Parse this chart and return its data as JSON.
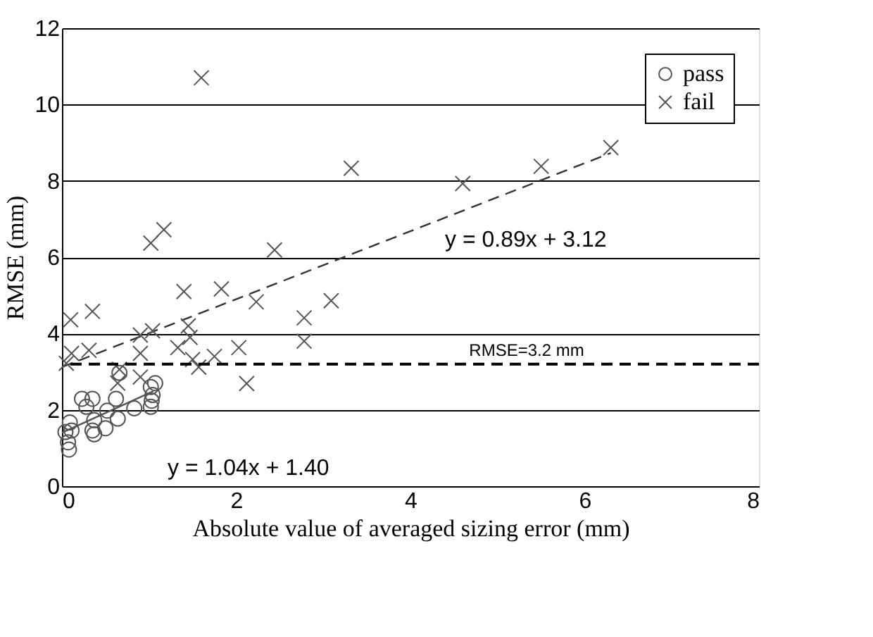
{
  "chart_data": {
    "type": "scatter",
    "xlabel": "Absolute value of averaged sizing error (mm)",
    "ylabel": "RMSE (mm)",
    "xlim": [
      0,
      8
    ],
    "ylim": [
      0,
      12
    ],
    "xticks": [
      0,
      2,
      4,
      6,
      8
    ],
    "yticks": [
      0,
      2,
      4,
      6,
      8,
      10,
      12
    ],
    "grid": "y",
    "legend": "top right",
    "series": [
      {
        "name": "pass",
        "marker": "circle",
        "color": "#555555",
        "x": [
          0.04,
          0.09,
          0.08,
          0.07,
          0.23,
          0.35,
          0.62,
          0.28,
          0.52,
          0.64,
          0.37,
          0.35,
          0.5,
          0.83,
          1.02,
          1.04,
          1.07,
          1.02,
          1.03,
          0.66,
          0.11,
          0.37
        ],
        "values": [
          1.42,
          1.67,
          0.96,
          1.15,
          2.29,
          2.29,
          2.29,
          2.08,
          1.98,
          1.77,
          1.73,
          1.46,
          1.52,
          2.04,
          2.08,
          2.39,
          2.7,
          2.6,
          2.24,
          2.97,
          1.46,
          1.36
        ]
      },
      {
        "name": "fail",
        "marker": "cross",
        "color": "#555555",
        "x": [
          0.1,
          0.35,
          1.02,
          1.17,
          2.44,
          1.4,
          1.83,
          2.23,
          2.78,
          3.09,
          2.78,
          0.9,
          1.04,
          1.45,
          1.47,
          1.33,
          1.5,
          1.75,
          2.03,
          0.31,
          0.11,
          0.9,
          1.57,
          2.12,
          0.66,
          0.64,
          0.9,
          0.05,
          6.3,
          5.5,
          4.6,
          3.32,
          1.6
        ],
        "values": [
          4.36,
          4.58,
          6.37,
          6.72,
          6.19,
          5.1,
          5.17,
          4.83,
          4.41,
          4.86,
          3.8,
          3.96,
          4.07,
          4.2,
          3.9,
          3.63,
          3.32,
          3.4,
          3.63,
          3.56,
          3.48,
          3.48,
          3.12,
          2.69,
          3.06,
          2.7,
          2.86,
          3.22,
          8.87,
          8.38,
          7.93,
          8.33,
          10.7
        ]
      },
      {
        "type": "line",
        "line_style": "solid",
        "color": "#555555",
        "x": [
          0,
          1.05
        ],
        "values": [
          1.4,
          2.49
        ]
      },
      {
        "type": "line",
        "line_style": "dashed",
        "color": "#333333",
        "x": [
          0,
          6.3
        ],
        "values": [
          3.12,
          8.73
        ]
      }
    ],
    "ref_lines": [
      {
        "axis": "y",
        "value": 3.2,
        "label": "RMSE=3.2 mm",
        "color": "#000000",
        "line_style": "dashed"
      }
    ],
    "annotations": [
      "y = 0.89x + 3.12",
      "y = 1.04x + 1.40"
    ]
  }
}
